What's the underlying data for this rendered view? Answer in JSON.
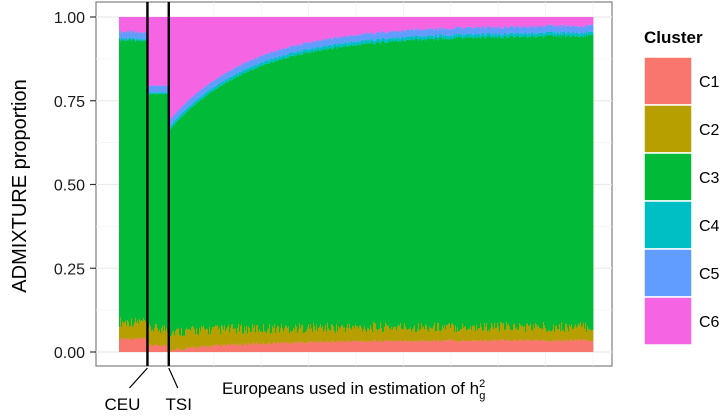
{
  "chart_data": {
    "type": "area",
    "title": "",
    "ylabel": "ADMIXTURE proportion",
    "xlabel": {
      "text": "Europeans used in estimation of h",
      "superscript": "2",
      "subscript": "g"
    },
    "ylim": [
      0,
      1
    ],
    "yticks": [
      "0.00",
      "0.25",
      "0.50",
      "0.75",
      "1.00"
    ],
    "grid": true,
    "legend": {
      "title": "Cluster",
      "position": "right",
      "entries": [
        "C1",
        "C2",
        "C3",
        "C4",
        "C5",
        "C6"
      ]
    },
    "colors": {
      "C1": "#F8766D",
      "C2": "#B79F00",
      "C3": "#00BA38",
      "C4": "#00BFC4",
      "C5": "#619CFF",
      "C6": "#F564E3"
    },
    "markers": [
      {
        "label": "CEU",
        "x": 0.06
      },
      {
        "label": "TSI",
        "x": 0.105
      }
    ],
    "groups": [
      {
        "name": "CEU",
        "x_range": [
          0,
          0.06
        ],
        "profile": {
          "C1": 0.04,
          "C2": 0.05,
          "C3": 0.84,
          "C4": 0.005,
          "C5": 0.02,
          "C6": 0.045
        }
      },
      {
        "name": "",
        "x_range": [
          0.06,
          0.105
        ],
        "profile": {
          "C1": 0.02,
          "C2": 0.05,
          "C3": 0.7,
          "C4": 0.005,
          "C5": 0.02,
          "C6": 0.205
        }
      },
      {
        "name": "TSI",
        "x_range": [
          0.105,
          1.0
        ],
        "profile_start": {
          "C1": 0.005,
          "C2": 0.055,
          "C3": 0.6,
          "C4": 0.01,
          "C5": 0.02,
          "C6": 0.31
        },
        "profile_end": {
          "C1": 0.035,
          "C2": 0.04,
          "C3": 0.87,
          "C4": 0.01,
          "C5": 0.02,
          "C6": 0.025
        }
      }
    ]
  }
}
